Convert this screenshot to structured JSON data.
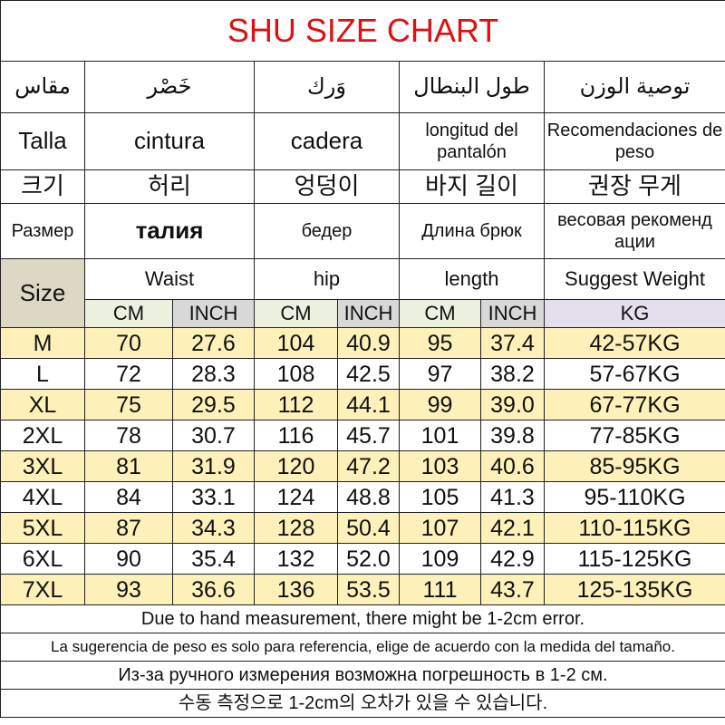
{
  "title": "SHU SIZE CHART",
  "headers": {
    "arabic": [
      "مقاس",
      "خَصْر",
      "وَرك",
      "طول البنطال",
      "توصية الوزن"
    ],
    "spanish": [
      "Talla",
      "cintura",
      "cadera",
      "longitud del pantalón",
      "Recomendaciones de peso"
    ],
    "korean": [
      "크기",
      "허리",
      "엉덩이",
      "바지 길이",
      "권장 무게"
    ],
    "russian": [
      "Размер",
      "талия",
      "бедер",
      "Длина брюк",
      "весовая рекоменд ации"
    ],
    "english": [
      "Size",
      "Waist",
      "hip",
      "length",
      "Suggest Weight"
    ],
    "units": [
      "CM",
      "INCH",
      "CM",
      "INCH",
      "CM",
      "INCH",
      "KG"
    ]
  },
  "colors": {
    "title": "#e01010",
    "size_header": "#ddd8c4",
    "cm": "#ebf1de",
    "inch": "#d8d8d8",
    "kg": "#e4dfec",
    "highlight_row": "#fdf0b8"
  },
  "rows": [
    [
      "M",
      "70",
      "27.6",
      "104",
      "40.9",
      "95",
      "37.4",
      "42-57KG"
    ],
    [
      "L",
      "72",
      "28.3",
      "108",
      "42.5",
      "97",
      "38.2",
      "57-67KG"
    ],
    [
      "XL",
      "75",
      "29.5",
      "112",
      "44.1",
      "99",
      "39.0",
      "67-77KG"
    ],
    [
      "2XL",
      "78",
      "30.7",
      "116",
      "45.7",
      "101",
      "39.8",
      "77-85KG"
    ],
    [
      "3XL",
      "81",
      "31.9",
      "120",
      "47.2",
      "103",
      "40.6",
      "85-95KG"
    ],
    [
      "4XL",
      "84",
      "33.1",
      "124",
      "48.8",
      "105",
      "41.3",
      "95-110KG"
    ],
    [
      "5XL",
      "87",
      "34.3",
      "128",
      "50.4",
      "107",
      "42.1",
      "110-115KG"
    ],
    [
      "6XL",
      "90",
      "35.4",
      "132",
      "52.0",
      "109",
      "42.9",
      "115-125KG"
    ],
    [
      "7XL",
      "93",
      "36.6",
      "136",
      "53.5",
      "111",
      "43.7",
      "125-135KG"
    ]
  ],
  "notes": [
    "Due to hand measurement, there might be 1-2cm error.",
    "La sugerencia de peso es solo para referencia, elige de acuerdo con la medida del tamaño.",
    "Из-за ручного измерения возможна погрешность в 1-2 см.",
    "수동 측정으로 1-2cm의 오차가 있을 수 있습니다."
  ]
}
